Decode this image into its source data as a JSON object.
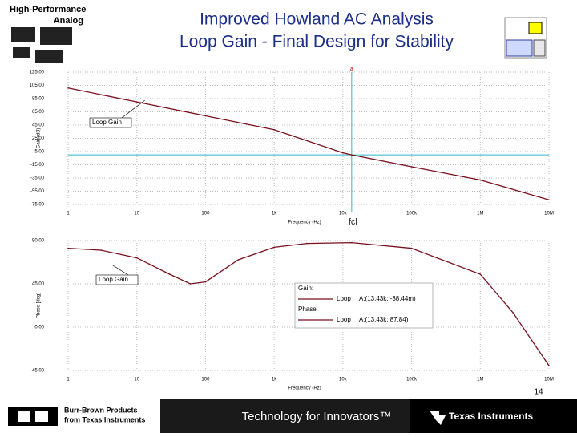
{
  "slide": {
    "title": "Improved Howland AC Analysis",
    "subtitle": "Loop Gain - Final Design for Stability",
    "badge": [
      "High-Performance",
      "Analog"
    ],
    "footer_left": [
      "Burr-Brown Products",
      "from Texas Instruments"
    ],
    "footer_center": "Technology for Innovators™",
    "footer_right": "Texas Instruments",
    "page": "14"
  },
  "chart_data": [
    {
      "type": "line",
      "y_label": "Gain (dB)",
      "x_label": "Frequency (Hz)",
      "xlog": true,
      "grid": true,
      "xlim": [
        1,
        10000000
      ],
      "xticks": [
        1,
        10,
        100,
        {
          "value": 1000,
          "label": "1k"
        },
        {
          "value": 10000,
          "label": "10k"
        },
        {
          "value": 100000,
          "label": "100k"
        },
        {
          "value": 1000000,
          "label": "1M"
        },
        {
          "value": 10000000,
          "label": "10M"
        }
      ],
      "ylim": [
        -75,
        125
      ],
      "yticks": [
        {
          "value": 125,
          "label": "125.00"
        },
        {
          "value": 105,
          "label": "105.00"
        },
        {
          "value": 85,
          "label": "85.00"
        },
        {
          "value": 65,
          "label": "65.00"
        },
        {
          "value": 45,
          "label": "45.00"
        },
        {
          "value": 25,
          "label": "25.00"
        },
        {
          "value": 5,
          "label": "5.00"
        },
        {
          "value": -15,
          "label": "-15.00"
        },
        {
          "value": -35,
          "label": "-35.00"
        },
        {
          "value": -55,
          "label": "-55.00"
        },
        {
          "value": -75,
          "label": "-75.00"
        }
      ],
      "x": [
        1,
        10,
        100,
        1000,
        10000,
        13430,
        100000,
        1000000,
        10000000
      ],
      "series": [
        {
          "name": "Loop",
          "color": "#7a0f1c",
          "values": [
            101,
            80,
            59,
            38,
            3,
            0,
            -18,
            -38,
            -68
          ]
        }
      ],
      "hline": 0,
      "cursor_x": 13430,
      "cursor_label": "fcl",
      "annotation": "Loop Gain",
      "cursor_tag": "a"
    },
    {
      "type": "line",
      "y_label": "Phase [deg]",
      "x_label": "Frequency (Hz)",
      "xlog": true,
      "grid": true,
      "xlim": [
        1,
        10000000
      ],
      "xticks": [
        1,
        10,
        100,
        {
          "value": 1000,
          "label": "1k"
        },
        {
          "value": 10000,
          "label": "10k"
        },
        {
          "value": 100000,
          "label": "100k"
        },
        {
          "value": 1000000,
          "label": "1M"
        },
        {
          "value": 10000000,
          "label": "10M"
        }
      ],
      "ylim": [
        -45,
        90
      ],
      "yticks": [
        {
          "value": 90,
          "label": "90.00"
        },
        {
          "value": 45,
          "label": "45.00"
        },
        {
          "value": 0,
          "label": "0.00"
        },
        {
          "value": -45,
          "label": "-45.00"
        }
      ],
      "x": [
        1,
        3,
        10,
        30,
        60,
        100,
        300,
        1000,
        3000,
        13430,
        100000,
        1000000,
        3000000,
        10000000
      ],
      "series": [
        {
          "name": "Loop",
          "color": "#7a0f1c",
          "values": [
            82,
            80,
            72,
            55,
            45,
            47,
            70,
            83,
            87,
            87.84,
            82,
            55,
            15,
            -40
          ]
        }
      ],
      "annotation": "Loop Gain",
      "legend": [
        {
          "group": "Gain:",
          "name": "Loop",
          "readout": "A:(13.43k; -38.44m)"
        },
        {
          "group": "Phase:",
          "name": "Loop",
          "readout": "A:(13.43k; 87.84)"
        }
      ]
    }
  ]
}
